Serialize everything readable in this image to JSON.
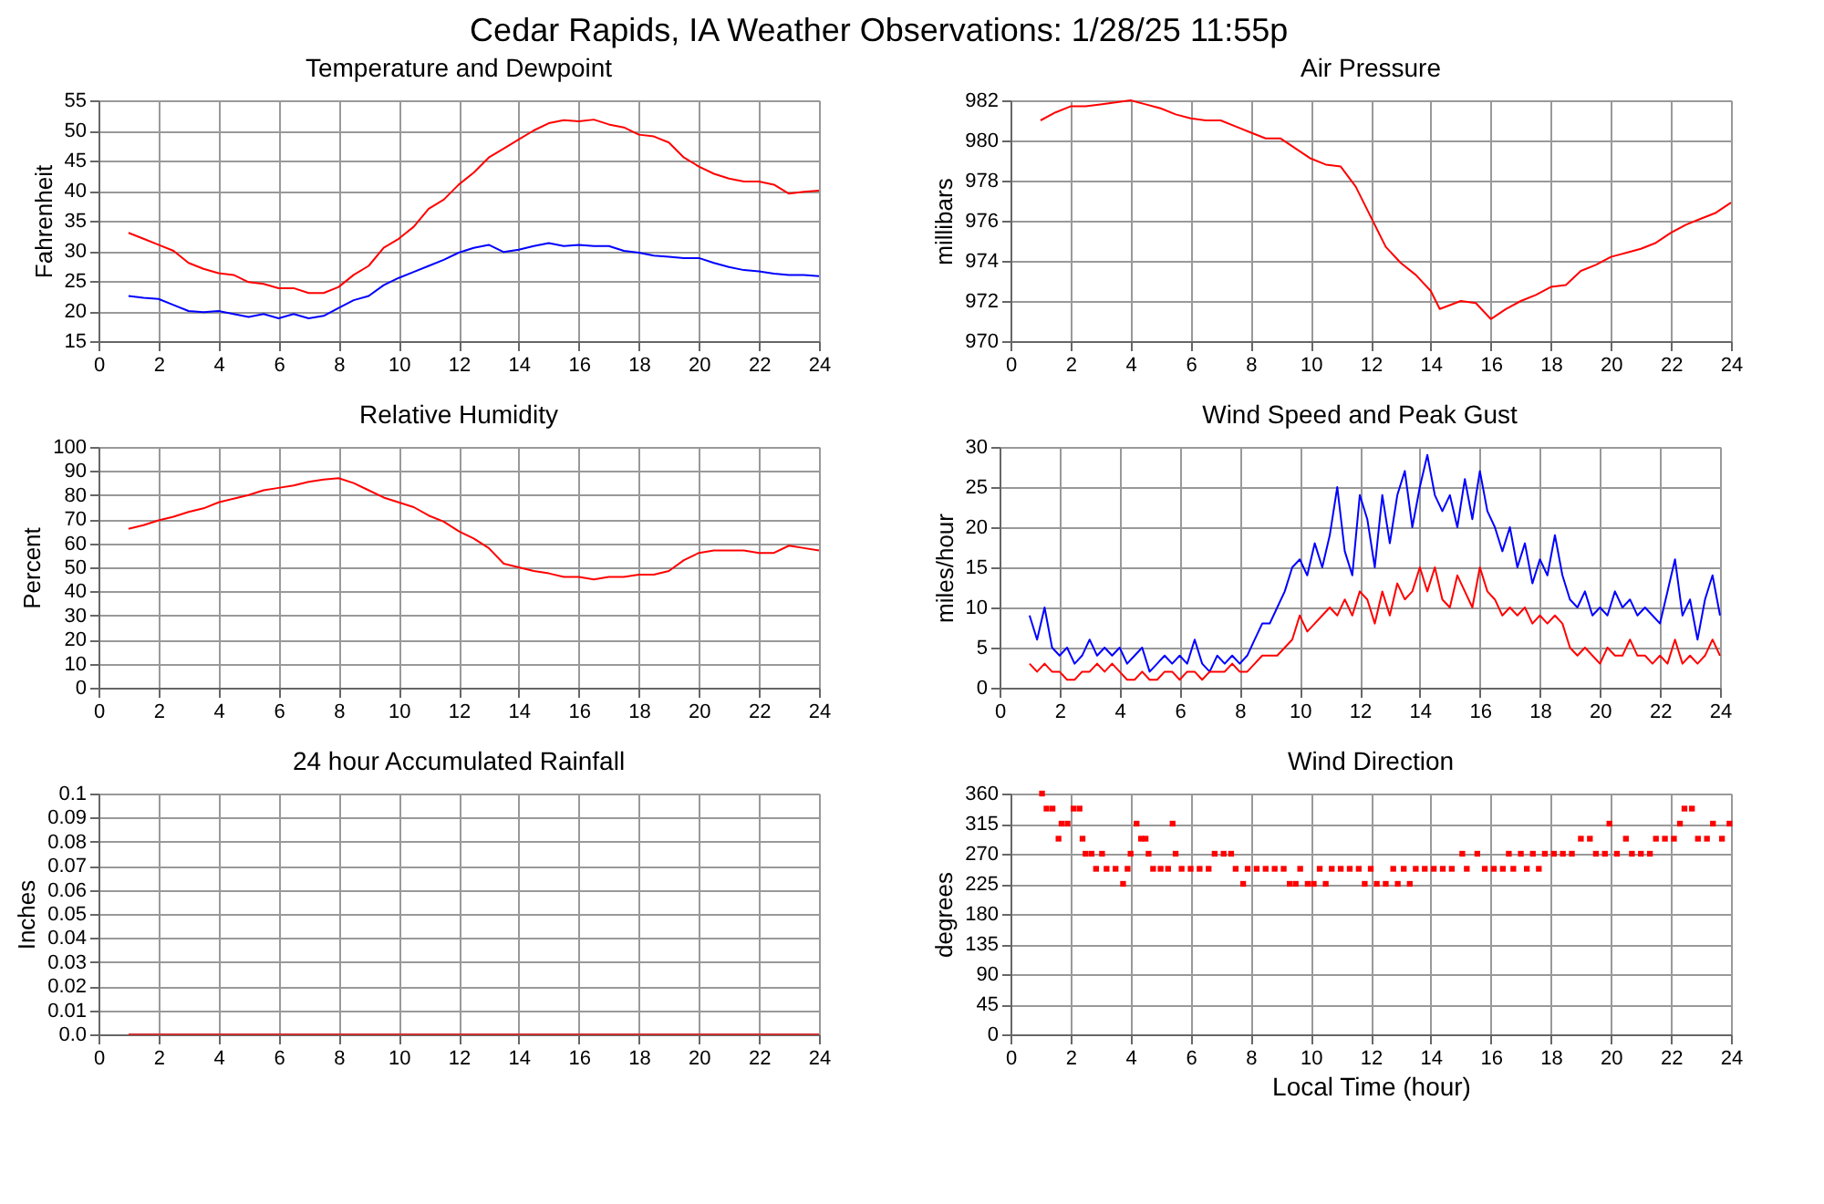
{
  "chart_data": [
    {
      "type": "line",
      "title": "Temperature and Dewpoint",
      "ylabel": "Fahrenheit",
      "xlim": [
        0,
        24
      ],
      "xticks": [
        0,
        2,
        4,
        6,
        8,
        10,
        12,
        14,
        16,
        18,
        20,
        22,
        24
      ],
      "ylim": [
        15,
        55
      ],
      "yticks": [
        15,
        20,
        25,
        30,
        35,
        40,
        45,
        50,
        55
      ],
      "grid": true,
      "marker": "none",
      "x": [
        1,
        1.5,
        2,
        2.5,
        3,
        3.5,
        4,
        4.5,
        5,
        5.5,
        6,
        6.5,
        7,
        7.5,
        8,
        8.5,
        9,
        9.5,
        10,
        10.5,
        11,
        11.5,
        12,
        12.5,
        13,
        13.5,
        14,
        14.5,
        15,
        15.5,
        16,
        16.5,
        17,
        17.5,
        18,
        18.5,
        19,
        19.5,
        20,
        20.5,
        21,
        21.5,
        22,
        22.5,
        23,
        23.5,
        24
      ],
      "series": [
        {
          "color": "#ff0000",
          "values": [
            33,
            32,
            31,
            30,
            28,
            27,
            26.3,
            26,
            24.8,
            24.5,
            23.8,
            23.8,
            23,
            23,
            24,
            26,
            27.5,
            30.5,
            32,
            34,
            37,
            38.5,
            41,
            43,
            45.5,
            47,
            48.5,
            50,
            51.2,
            51.7,
            51.5,
            51.8,
            51,
            50.5,
            49.3,
            49,
            48,
            45.5,
            44,
            42.8,
            42,
            41.5,
            41.5,
            41,
            39.5,
            39.8,
            40
          ]
        },
        {
          "color": "#0000ff",
          "values": [
            22.5,
            22.2,
            22,
            21,
            20,
            19.8,
            20,
            19.5,
            19,
            19.5,
            18.8,
            19.5,
            18.8,
            19.2,
            20.5,
            21.8,
            22.5,
            24.3,
            25.5,
            26.5,
            27.5,
            28.5,
            29.7,
            30.5,
            31,
            29.8,
            30.2,
            30.8,
            31.3,
            30.8,
            31,
            30.8,
            30.8,
            30,
            29.7,
            29.2,
            29,
            28.8,
            28.8,
            28,
            27.3,
            26.8,
            26.6,
            26.2,
            26,
            26,
            25.8
          ]
        }
      ]
    },
    {
      "type": "line",
      "title": "Air Pressure",
      "ylabel": "millibars",
      "xlim": [
        0,
        24
      ],
      "xticks": [
        0,
        2,
        4,
        6,
        8,
        10,
        12,
        14,
        16,
        18,
        20,
        22,
        24
      ],
      "ylim": [
        970,
        982
      ],
      "yticks": [
        970,
        972,
        974,
        976,
        978,
        980,
        982
      ],
      "grid": true,
      "marker": "none",
      "x": [
        1,
        1.5,
        2,
        2.5,
        3,
        3.5,
        4,
        4.5,
        5,
        5.5,
        6,
        6.5,
        7,
        7.5,
        8,
        8.5,
        9,
        9.5,
        10,
        10.5,
        11,
        11.5,
        12,
        12.5,
        13,
        13.5,
        14,
        14.3,
        15,
        15.5,
        16,
        16.5,
        17,
        17.5,
        18,
        18.5,
        19,
        19.5,
        20,
        20.5,
        21,
        21.5,
        22,
        22.5,
        23,
        23.5,
        24
      ],
      "series": [
        {
          "color": "#ff0000",
          "values": [
            981,
            981.4,
            981.7,
            981.7,
            981.8,
            981.9,
            982,
            981.8,
            981.6,
            981.3,
            981.1,
            981,
            981,
            980.7,
            980.4,
            980.1,
            980.1,
            979.6,
            979.1,
            978.8,
            978.7,
            977.7,
            976.2,
            974.7,
            973.9,
            973.3,
            972.5,
            971.6,
            972,
            971.9,
            971.1,
            971.6,
            972,
            972.3,
            972.7,
            972.8,
            973.5,
            973.8,
            974.2,
            974.4,
            974.6,
            974.9,
            975.4,
            975.8,
            976.1,
            976.4,
            976.9
          ]
        }
      ]
    },
    {
      "type": "line",
      "title": "Relative Humidity",
      "ylabel": "Percent",
      "xlim": [
        0,
        24
      ],
      "xticks": [
        0,
        2,
        4,
        6,
        8,
        10,
        12,
        14,
        16,
        18,
        20,
        22,
        24
      ],
      "ylim": [
        0,
        100
      ],
      "yticks": [
        0,
        10,
        20,
        30,
        40,
        50,
        60,
        70,
        80,
        90,
        100
      ],
      "grid": true,
      "marker": "none",
      "x": [
        1,
        1.5,
        2,
        2.5,
        3,
        3.5,
        4,
        4.5,
        5,
        5.5,
        6,
        6.5,
        7,
        7.5,
        8,
        8.5,
        9,
        9.5,
        10,
        10.5,
        11,
        11.5,
        12,
        12.5,
        13,
        13.5,
        14,
        14.5,
        15,
        15.5,
        16,
        16.5,
        17,
        17.5,
        18,
        18.5,
        19,
        19.5,
        20,
        20.5,
        21,
        21.5,
        22,
        22.5,
        23,
        23.5,
        24
      ],
      "series": [
        {
          "color": "#ff0000",
          "values": [
            66,
            67.5,
            69.5,
            71,
            73,
            74.5,
            77,
            78.5,
            80,
            82,
            83,
            84,
            85.5,
            86.5,
            87,
            85,
            82,
            79,
            77,
            75,
            71.5,
            69,
            65,
            62,
            58,
            51.5,
            50,
            48.5,
            47.5,
            46,
            46,
            45,
            46,
            46,
            47,
            47,
            48.5,
            53,
            56,
            57,
            57,
            57,
            56,
            56,
            59,
            58,
            57
          ]
        }
      ]
    },
    {
      "type": "line",
      "title": "Wind Speed and Peak Gust",
      "ylabel": "miles/hour",
      "xlim": [
        0,
        24
      ],
      "xticks": [
        0,
        2,
        4,
        6,
        8,
        10,
        12,
        14,
        16,
        18,
        20,
        22,
        24
      ],
      "ylim": [
        0,
        30
      ],
      "yticks": [
        0,
        5,
        10,
        15,
        20,
        25,
        30
      ],
      "grid": true,
      "marker": "none",
      "x": [
        1,
        1.25,
        1.5,
        1.75,
        2,
        2.25,
        2.5,
        2.75,
        3,
        3.25,
        3.5,
        3.75,
        4,
        4.25,
        4.5,
        4.75,
        5,
        5.25,
        5.5,
        5.75,
        6,
        6.25,
        6.5,
        6.75,
        7,
        7.25,
        7.5,
        7.75,
        8,
        8.25,
        8.5,
        8.75,
        9,
        9.25,
        9.5,
        9.75,
        10,
        10.25,
        10.5,
        10.75,
        11,
        11.25,
        11.5,
        11.75,
        12,
        12.25,
        12.5,
        12.75,
        13,
        13.25,
        13.5,
        13.75,
        14,
        14.25,
        14.5,
        14.75,
        15,
        15.25,
        15.5,
        15.75,
        16,
        16.25,
        16.5,
        16.75,
        17,
        17.25,
        17.5,
        17.75,
        18,
        18.25,
        18.5,
        18.75,
        19,
        19.25,
        19.5,
        19.75,
        20,
        20.25,
        20.5,
        20.75,
        21,
        21.25,
        21.5,
        21.75,
        22,
        22.25,
        22.5,
        22.75,
        23,
        23.25,
        23.5,
        23.75,
        24
      ],
      "series": [
        {
          "color": "#0000ff",
          "values": [
            9,
            6,
            10,
            5,
            4,
            5,
            3,
            4,
            6,
            4,
            5,
            4,
            5,
            3,
            4,
            5,
            2,
            3,
            4,
            3,
            4,
            3,
            6,
            3,
            2,
            4,
            3,
            4,
            3,
            4,
            6,
            8,
            8,
            10,
            12,
            15,
            16,
            14,
            18,
            15,
            19,
            25,
            17,
            14,
            24,
            21,
            15,
            24,
            18,
            24,
            27,
            20,
            25,
            29,
            24,
            22,
            24,
            20,
            26,
            21,
            27,
            22,
            20,
            17,
            20,
            15,
            18,
            13,
            16,
            14,
            19,
            14,
            11,
            10,
            12,
            9,
            10,
            9,
            12,
            10,
            11,
            9,
            10,
            9,
            8,
            12,
            16,
            9,
            11,
            6,
            11,
            14,
            9
          ]
        },
        {
          "color": "#ff0000",
          "values": [
            3,
            2,
            3,
            2,
            2,
            1,
            1,
            2,
            2,
            3,
            2,
            3,
            2,
            1,
            1,
            2,
            1,
            1,
            2,
            2,
            1,
            2,
            2,
            1,
            2,
            2,
            2,
            3,
            2,
            2,
            3,
            4,
            4,
            4,
            5,
            6,
            9,
            7,
            8,
            9,
            10,
            9,
            11,
            9,
            12,
            11,
            8,
            12,
            9,
            13,
            11,
            12,
            15,
            12,
            15,
            11,
            10,
            14,
            12,
            10,
            15,
            12,
            11,
            9,
            10,
            9,
            10,
            8,
            9,
            8,
            9,
            8,
            5,
            4,
            5,
            4,
            3,
            5,
            4,
            4,
            6,
            4,
            4,
            3,
            4,
            3,
            6,
            3,
            4,
            3,
            4,
            6,
            4
          ]
        }
      ]
    },
    {
      "type": "line",
      "title": "24 hour Accumulated Rainfall",
      "ylabel": "Inches",
      "xlim": [
        0,
        24
      ],
      "xticks": [
        0,
        2,
        4,
        6,
        8,
        10,
        12,
        14,
        16,
        18,
        20,
        22,
        24
      ],
      "ylim": [
        0,
        0.1
      ],
      "yticks": [
        {
          "value": 0,
          "label": "0.0"
        },
        0.01,
        0.02,
        0.03,
        0.04,
        0.05,
        0.06,
        0.07,
        0.08,
        0.09,
        {
          "value": 0.1,
          "label": "0.1"
        }
      ],
      "grid": true,
      "marker": "none",
      "x": [
        1,
        24
      ],
      "series": [
        {
          "color": "#cc3333",
          "values": [
            0,
            0
          ]
        }
      ]
    },
    {
      "type": "scatter",
      "title": "Wind Direction",
      "ylabel": "degrees",
      "xlabel": "Local Time (hour)",
      "xlim": [
        0,
        24
      ],
      "xticks": [
        0,
        2,
        4,
        6,
        8,
        10,
        12,
        14,
        16,
        18,
        20,
        22,
        24
      ],
      "ylim": [
        0,
        360
      ],
      "yticks": [
        0,
        45,
        90,
        135,
        180,
        225,
        270,
        315,
        360
      ],
      "grid": true,
      "marker": "square",
      "x": [
        1.05,
        1.2,
        1.4,
        1.6,
        1.7,
        1.9,
        2.1,
        2.3,
        2.4,
        2.5,
        2.7,
        2.85,
        3.05,
        3.2,
        3.5,
        3.75,
        3.9,
        4.0,
        4.2,
        4.35,
        4.5,
        4.6,
        4.75,
        5.0,
        5.25,
        5.4,
        5.5,
        5.7,
        6.0,
        6.3,
        6.6,
        6.8,
        7.1,
        7.35,
        7.5,
        7.75,
        7.9,
        8.2,
        8.5,
        8.8,
        9.1,
        9.3,
        9.5,
        9.65,
        9.9,
        10.1,
        10.3,
        10.5,
        10.7,
        11.0,
        11.3,
        11.6,
        11.8,
        12.0,
        12.2,
        12.5,
        12.75,
        12.9,
        13.1,
        13.3,
        13.5,
        13.8,
        14.1,
        14.4,
        14.7,
        15.05,
        15.2,
        15.55,
        15.8,
        16.1,
        16.4,
        16.6,
        16.75,
        17.0,
        17.2,
        17.4,
        17.6,
        17.8,
        18.1,
        18.4,
        18.7,
        19.0,
        19.3,
        19.5,
        19.8,
        19.95,
        20.2,
        20.5,
        20.7,
        21.0,
        21.3,
        21.5,
        21.8,
        22.1,
        22.3,
        22.45,
        22.7,
        22.9,
        23.2,
        23.4,
        23.7,
        23.95
      ],
      "series": [
        {
          "color": "#ff0000",
          "values": [
            360,
            337.5,
            337.5,
            292.5,
            315,
            315,
            337.5,
            337.5,
            292.5,
            270,
            270,
            247.5,
            270,
            247.5,
            247.5,
            225,
            247.5,
            270,
            315,
            292.5,
            292.5,
            270,
            247.5,
            247.5,
            247.5,
            315,
            270,
            247.5,
            247.5,
            247.5,
            247.5,
            270,
            270,
            270,
            247.5,
            225,
            247.5,
            247.5,
            247.5,
            247.5,
            247.5,
            225,
            225,
            247.5,
            225,
            225,
            247.5,
            225,
            247.5,
            247.5,
            247.5,
            247.5,
            225,
            247.5,
            225,
            225,
            247.5,
            225,
            247.5,
            225,
            247.5,
            247.5,
            247.5,
            247.5,
            247.5,
            270,
            247.5,
            270,
            247.5,
            247.5,
            247.5,
            270,
            247.5,
            270,
            247.5,
            270,
            247.5,
            270,
            270,
            270,
            270,
            292.5,
            292.5,
            270,
            270,
            315,
            270,
            292.5,
            270,
            270,
            270,
            292.5,
            292.5,
            292.5,
            315,
            337.5,
            337.5,
            292.5,
            292.5,
            315,
            292.5,
            315
          ]
        }
      ]
    },
    {
      "type": "other",
      "title": "Cedar Rapids, IA Weather Observations: 1/28/25 11:55p"
    }
  ]
}
